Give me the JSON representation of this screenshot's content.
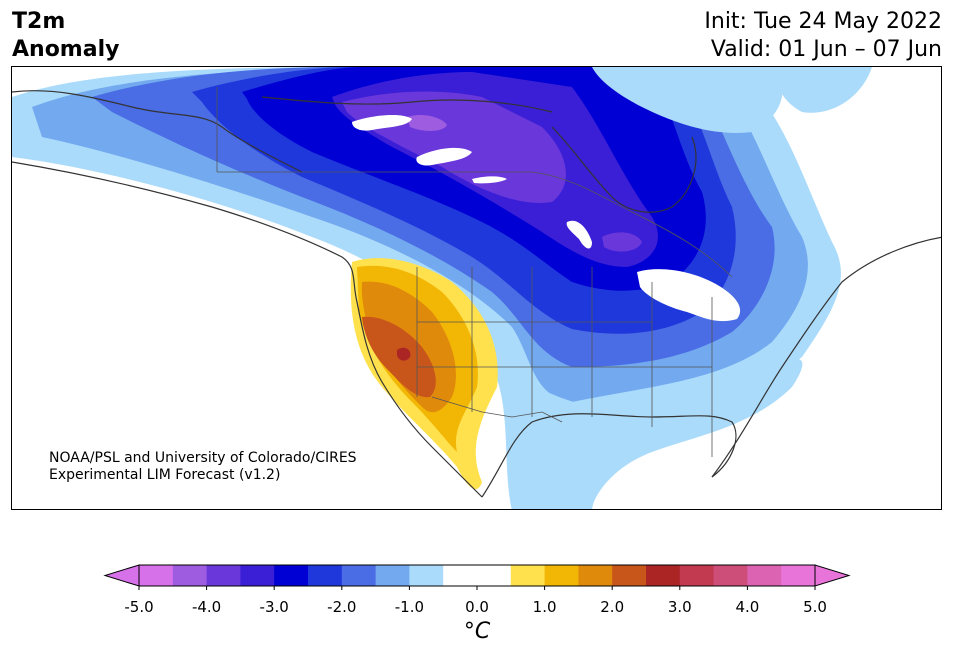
{
  "header": {
    "title_line1": "T2m",
    "title_line2": "Anomaly",
    "init": "Init: Tue 24 May 2022",
    "valid": "Valid: 01 Jun – 07 Jun"
  },
  "credit": {
    "line1": "NOAA/PSL and University of Colorado/CIRES",
    "line2": "Experimental LIM Forecast (v1.2)"
  },
  "colorbar": {
    "unit": "°C",
    "ticks": [
      "-5.0",
      "-4.0",
      "-3.0",
      "-2.0",
      "-1.0",
      "0.0",
      "1.0",
      "2.0",
      "3.0",
      "4.0",
      "5.0"
    ],
    "colors": [
      "#d771e9",
      "#9e5ce0",
      "#6a37da",
      "#3a1fd6",
      "#0000d4",
      "#1f38dc",
      "#4a6ce4",
      "#72a9ef",
      "#abdbfb",
      "#ffffff",
      "#ffffff",
      "#ffe14d",
      "#f2b705",
      "#e08a0c",
      "#c8561a",
      "#ac2525",
      "#c23a50",
      "#ce4e7a",
      "#dc62b2",
      "#e873d9"
    ],
    "under_color": "#d771e9",
    "over_color": "#e873d9"
  }
}
